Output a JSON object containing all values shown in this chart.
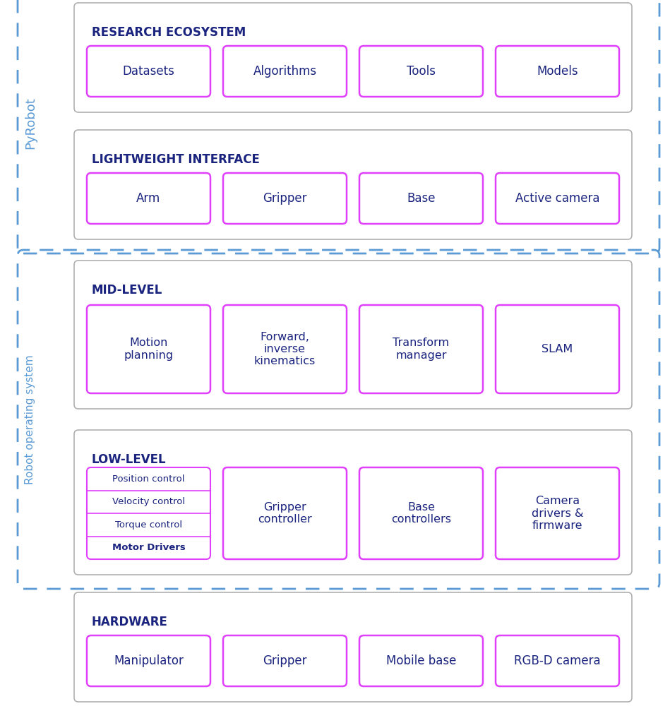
{
  "bg_color": "#ffffff",
  "title_color": "#1a237e",
  "box_text_color": "#1a237e",
  "gray_border_color": "#b0b0b0",
  "pink_border_color": "#e040fb",
  "blue_dash_color": "#5b9bd5",
  "pyrobot_label": "PyRobot",
  "ros_label": "Robot operating system",
  "sections": [
    {
      "id": "research",
      "title": "RESEARCH ECOSYSTEM",
      "items": [
        "Datasets",
        "Algorithms",
        "Tools",
        "Models"
      ]
    },
    {
      "id": "lightweight",
      "title": "LIGHTWEIGHT INTERFACE",
      "items": [
        "Arm",
        "Gripper",
        "Base",
        "Active camera"
      ]
    },
    {
      "id": "mid_level",
      "title": "MID-LEVEL",
      "items": [
        "Motion\nplanning",
        "Forward,\ninverse\nkinematics",
        "Transform\nmanager",
        "SLAM"
      ]
    },
    {
      "id": "low_level",
      "title": "LOW-LEVEL",
      "arm_items": [
        "Position control",
        "Velocity control",
        "Torque control",
        "Motor Drivers"
      ],
      "arm_bold": [
        false,
        false,
        false,
        true
      ],
      "other_items": [
        "Gripper\ncontroller",
        "Base\ncontrollers",
        "Camera\ndrivers &\nfirmware"
      ]
    },
    {
      "id": "hardware",
      "title": "HARDWARE",
      "items": [
        "Manipulator",
        "Gripper",
        "Mobile base",
        "RGB-D camera"
      ]
    }
  ]
}
